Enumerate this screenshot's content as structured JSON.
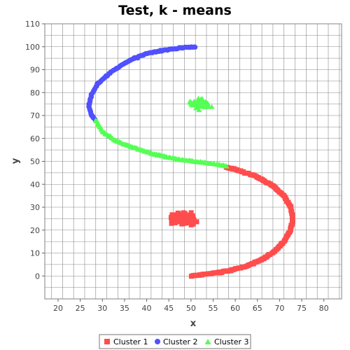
{
  "chart_data": {
    "type": "scatter",
    "title": "Test, k - means",
    "xlabel": "x",
    "ylabel": "y",
    "xlim": [
      17,
      84
    ],
    "ylim": [
      -10,
      110
    ],
    "xticks": [
      20,
      25,
      30,
      35,
      40,
      45,
      50,
      55,
      60,
      65,
      70,
      75,
      80
    ],
    "yticks": [
      0,
      10,
      20,
      30,
      40,
      50,
      60,
      70,
      80,
      90,
      100,
      110
    ],
    "grid": true,
    "legend_position": "bottom",
    "series": [
      {
        "name": "Cluster 1",
        "marker": "square",
        "color": "#ff4d4d",
        "curve": [
          [
            50,
            0
          ],
          [
            54,
            1
          ],
          [
            58,
            2
          ],
          [
            62,
            4
          ],
          [
            66,
            7
          ],
          [
            69,
            11
          ],
          [
            71,
            15
          ],
          [
            72.5,
            20
          ],
          [
            73,
            25
          ],
          [
            72.5,
            30
          ],
          [
            71,
            35
          ],
          [
            68,
            40
          ],
          [
            64,
            44
          ],
          [
            60,
            46.5
          ],
          [
            58,
            47.5
          ]
        ],
        "blob": {
          "center": [
            48,
            25
          ],
          "x_spread": 6,
          "y_spread": 5,
          "points": 150
        }
      },
      {
        "name": "Cluster 2",
        "marker": "circle",
        "color": "#5050ff",
        "curve": [
          [
            51,
            100
          ],
          [
            48,
            99.5
          ],
          [
            44,
            98.5
          ],
          [
            40,
            97
          ],
          [
            36,
            94
          ],
          [
            32,
            89
          ],
          [
            29,
            84
          ],
          [
            27.5,
            79
          ],
          [
            27,
            74
          ],
          [
            27.5,
            70
          ],
          [
            28.5,
            68
          ]
        ]
      },
      {
        "name": "Cluster 3",
        "marker": "triangle",
        "color": "#55ff55",
        "curve": [
          [
            28.5,
            68
          ],
          [
            30,
            63
          ],
          [
            33,
            59
          ],
          [
            37,
            56
          ],
          [
            42,
            53
          ],
          [
            48,
            50.5
          ],
          [
            53,
            49.5
          ],
          [
            58,
            48
          ]
        ],
        "blob": {
          "center": [
            52,
            75
          ],
          "x_spread": 4,
          "y_spread": 4,
          "points": 120
        }
      }
    ]
  }
}
